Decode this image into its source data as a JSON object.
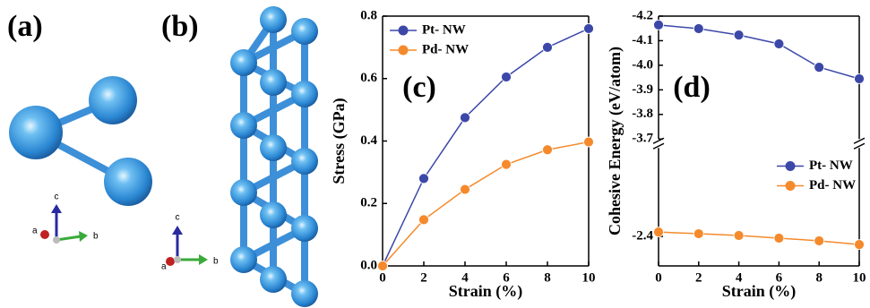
{
  "structures": [
    {
      "label": "(a)",
      "axes": [
        "a",
        "b",
        "c"
      ]
    },
    {
      "label": "(b)",
      "axes": [
        "a",
        "b",
        "c"
      ]
    }
  ],
  "chart_data": [
    {
      "type": "line",
      "panel_label": "(c)",
      "xlabel": "Strain (%)",
      "ylabel": "Stress (GPa)",
      "x": [
        0,
        2,
        4,
        6,
        8,
        10
      ],
      "series": [
        {
          "name": "Pt- NW",
          "color": "#3c48a8",
          "values": [
            0,
            0.28,
            0.475,
            0.605,
            0.7,
            0.76
          ]
        },
        {
          "name": "Pd- NW",
          "color": "#f58a2c",
          "values": [
            0,
            0.148,
            0.245,
            0.325,
            0.372,
            0.397
          ]
        }
      ],
      "xlim": [
        0,
        10
      ],
      "xticks": [
        0,
        2,
        4,
        6,
        8,
        10
      ],
      "ylim": [
        0,
        0.8
      ],
      "yticks": [
        {
          "value": 0,
          "label": "0.0"
        },
        0.2,
        0.4,
        0.6,
        0.8
      ],
      "legend": "upper left"
    },
    {
      "type": "line",
      "panel_label": "(d)",
      "xlabel": "Strain (%)",
      "ylabel": "Cohesive Energy (eV/atom)",
      "x": [
        0,
        2,
        4,
        6,
        8,
        10
      ],
      "series": [
        {
          "name": "Pt- NW",
          "color": "#3c48a8",
          "values": [
            -4.164,
            -4.149,
            -4.123,
            -4.087,
            -3.992,
            -3.945
          ]
        },
        {
          "name": "Pd- NW",
          "color": "#f58a2c",
          "values": [
            -2.418,
            -2.411,
            -2.404,
            -2.393,
            -2.382,
            -2.367
          ]
        }
      ],
      "xlim": [
        0,
        10
      ],
      "xticks": [
        0,
        2,
        4,
        6,
        8,
        10
      ],
      "ylim_segments": [
        [
          -4.2,
          -3.7
        ],
        [
          -2.76,
          -2.28
        ]
      ],
      "yticks": [
        -4.2,
        -4.1,
        {
          "value": -4.0,
          "label": "-4.0"
        },
        -3.9,
        -3.8,
        -3.7,
        -2.4
      ],
      "legend": "center right"
    }
  ]
}
